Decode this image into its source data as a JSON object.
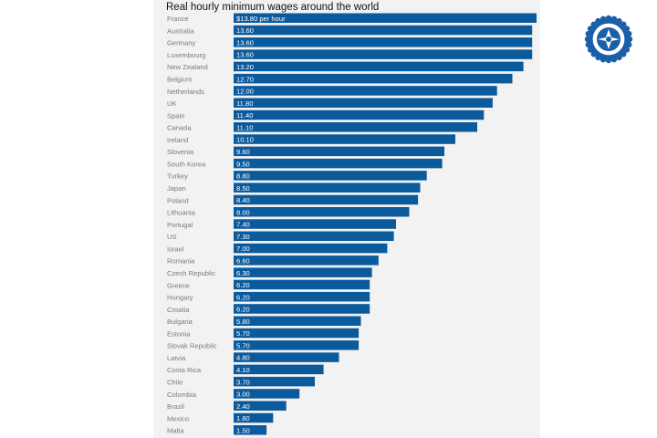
{
  "chart_data": {
    "type": "bar",
    "orientation": "horizontal",
    "title": "Real hourly minimum wages around the world",
    "first_label_suffix": " per hour",
    "value_prefix": "$",
    "categories": [
      "France",
      "Australia",
      "Germany",
      "Luxembourg",
      "New Zealand",
      "Belgium",
      "Netherlands",
      "UK",
      "Spain",
      "Canada",
      "Ireland",
      "Slovenia",
      "South Korea",
      "Turkey",
      "Japan",
      "Poland",
      "Lithuania",
      "Portugal",
      "US",
      "Israel",
      "Romania",
      "Czech Republic",
      "Greece",
      "Hungary",
      "Croatia",
      "Bulgaria",
      "Estonia",
      "Slovak Republic",
      "Latvia",
      "Costa Rica",
      "Chile",
      "Colombia",
      "Brazil",
      "Mexico",
      "Malta"
    ],
    "values": [
      13.8,
      13.6,
      13.6,
      13.6,
      13.2,
      12.7,
      12.0,
      11.8,
      11.4,
      11.1,
      10.1,
      9.6,
      9.5,
      8.8,
      8.5,
      8.4,
      8.0,
      7.4,
      7.3,
      7.0,
      6.6,
      6.3,
      6.2,
      6.2,
      6.2,
      5.8,
      5.7,
      5.7,
      4.8,
      4.1,
      3.7,
      3.0,
      2.4,
      1.8,
      1.5
    ],
    "xlim": [
      0,
      13.8
    ],
    "bar_color": "#0a5a9c",
    "label_color": "#ffffff",
    "category_color": "#7a7a7a",
    "grid": false,
    "legend": "none"
  },
  "logo": {
    "colors": [
      "#1a5fa8",
      "#ffffff"
    ]
  }
}
